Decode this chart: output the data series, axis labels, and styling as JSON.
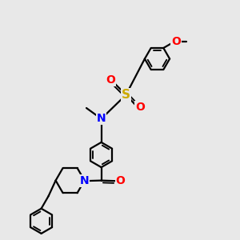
{
  "background_color": "#e8e8e8",
  "atom_colors": {
    "N": "#0000ff",
    "O": "#ff0000",
    "S": "#ccaa00"
  },
  "bond_color": "#000000",
  "bond_width": 1.6,
  "font_size_N": 10,
  "font_size_O": 10,
  "font_size_S": 11
}
